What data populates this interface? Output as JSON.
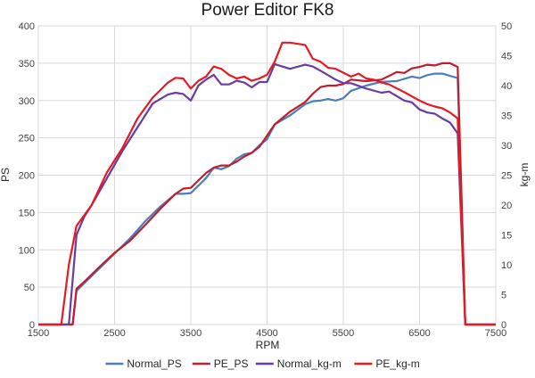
{
  "chart_data": {
    "type": "line",
    "title": "Power Editor FK8",
    "xlabel": "RPM",
    "ylabel": "PS",
    "y2label": "kg-m",
    "xlim": [
      1500,
      7500
    ],
    "ylim": [
      0,
      400
    ],
    "y2lim": [
      0,
      50
    ],
    "xticks": [
      "1500",
      "2500",
      "3500",
      "4500",
      "5500",
      "6500",
      "7500"
    ],
    "yticks": [
      "0",
      "50",
      "100",
      "150",
      "200",
      "250",
      "300",
      "350",
      "400"
    ],
    "y2ticks": [
      "0",
      "5",
      "10",
      "15",
      "20",
      "25",
      "30",
      "35",
      "40",
      "45",
      "50"
    ],
    "grid": true,
    "legend_position": "bottom",
    "series": [
      {
        "name": "Normal_PS",
        "axis": "left",
        "color": "#4a7ebb",
        "points": [
          [
            1500,
            0
          ],
          [
            1950,
            0
          ],
          [
            2000,
            45
          ],
          [
            2100,
            55
          ],
          [
            2300,
            75
          ],
          [
            2500,
            95
          ],
          [
            2700,
            115
          ],
          [
            2900,
            138
          ],
          [
            3100,
            158
          ],
          [
            3300,
            175
          ],
          [
            3400,
            175
          ],
          [
            3500,
            176
          ],
          [
            3700,
            196
          ],
          [
            3800,
            210
          ],
          [
            3900,
            208
          ],
          [
            4000,
            212
          ],
          [
            4100,
            222
          ],
          [
            4200,
            228
          ],
          [
            4300,
            230
          ],
          [
            4400,
            240
          ],
          [
            4500,
            248
          ],
          [
            4600,
            268
          ],
          [
            4800,
            280
          ],
          [
            5000,
            295
          ],
          [
            5100,
            299
          ],
          [
            5200,
            300
          ],
          [
            5300,
            302
          ],
          [
            5400,
            300
          ],
          [
            5500,
            303
          ],
          [
            5600,
            313
          ],
          [
            5800,
            320
          ],
          [
            6000,
            325
          ],
          [
            6200,
            326
          ],
          [
            6400,
            332
          ],
          [
            6500,
            330
          ],
          [
            6600,
            334
          ],
          [
            6700,
            336
          ],
          [
            6800,
            336
          ],
          [
            6900,
            333
          ],
          [
            7000,
            330
          ],
          [
            7100,
            0
          ],
          [
            7500,
            0
          ]
        ]
      },
      {
        "name": "PE_PS",
        "axis": "left",
        "color": "#be1e2d",
        "points": [
          [
            1500,
            0
          ],
          [
            1950,
            0
          ],
          [
            2000,
            48
          ],
          [
            2100,
            57
          ],
          [
            2300,
            77
          ],
          [
            2500,
            96
          ],
          [
            2700,
            112
          ],
          [
            2900,
            133
          ],
          [
            3100,
            155
          ],
          [
            3300,
            175
          ],
          [
            3400,
            182
          ],
          [
            3500,
            183
          ],
          [
            3700,
            203
          ],
          [
            3800,
            210
          ],
          [
            3900,
            213
          ],
          [
            4000,
            213
          ],
          [
            4100,
            218
          ],
          [
            4200,
            225
          ],
          [
            4300,
            230
          ],
          [
            4400,
            238
          ],
          [
            4500,
            253
          ],
          [
            4600,
            268
          ],
          [
            4800,
            285
          ],
          [
            5000,
            298
          ],
          [
            5100,
            309
          ],
          [
            5200,
            318
          ],
          [
            5300,
            320
          ],
          [
            5400,
            320
          ],
          [
            5500,
            322
          ],
          [
            5600,
            328
          ],
          [
            5800,
            326
          ],
          [
            6000,
            328
          ],
          [
            6200,
            338
          ],
          [
            6300,
            337
          ],
          [
            6400,
            343
          ],
          [
            6500,
            345
          ],
          [
            6600,
            348
          ],
          [
            6700,
            347
          ],
          [
            6800,
            350
          ],
          [
            6900,
            350
          ],
          [
            7000,
            345
          ],
          [
            7100,
            0
          ],
          [
            7500,
            0
          ]
        ]
      },
      {
        "name": "Normal_kg-m",
        "axis": "right",
        "color": "#6a3ba0",
        "points": [
          [
            1500,
            0
          ],
          [
            1900,
            0
          ],
          [
            2000,
            15
          ],
          [
            2100,
            18
          ],
          [
            2200,
            20
          ],
          [
            2400,
            24.5
          ],
          [
            2600,
            29
          ],
          [
            2800,
            33
          ],
          [
            3000,
            37
          ],
          [
            3200,
            38.5
          ],
          [
            3300,
            38.8
          ],
          [
            3400,
            38.6
          ],
          [
            3500,
            37.5
          ],
          [
            3600,
            40
          ],
          [
            3700,
            41
          ],
          [
            3800,
            41.8
          ],
          [
            3900,
            40.2
          ],
          [
            4000,
            40.2
          ],
          [
            4100,
            40.8
          ],
          [
            4200,
            40.5
          ],
          [
            4300,
            39.7
          ],
          [
            4400,
            40.6
          ],
          [
            4500,
            40.6
          ],
          [
            4600,
            43.6
          ],
          [
            4700,
            43.2
          ],
          [
            4800,
            42.8
          ],
          [
            5000,
            43.5
          ],
          [
            5100,
            43.2
          ],
          [
            5200,
            42.5
          ],
          [
            5400,
            41
          ],
          [
            5500,
            40.4
          ],
          [
            5600,
            40.4
          ],
          [
            5800,
            39.5
          ],
          [
            6000,
            38.8
          ],
          [
            6100,
            39
          ],
          [
            6300,
            37.5
          ],
          [
            6400,
            37.2
          ],
          [
            6500,
            36.0
          ],
          [
            6600,
            35.5
          ],
          [
            6700,
            35.3
          ],
          [
            6800,
            34.5
          ],
          [
            6900,
            33.8
          ],
          [
            7000,
            32.0
          ],
          [
            7100,
            0
          ],
          [
            7500,
            0
          ]
        ]
      },
      {
        "name": "PE_kg-m",
        "axis": "right",
        "color": "#e51b23",
        "points": [
          [
            1500,
            0
          ],
          [
            1800,
            0
          ],
          [
            1900,
            10
          ],
          [
            2000,
            16.5
          ],
          [
            2200,
            20
          ],
          [
            2400,
            25.5
          ],
          [
            2600,
            29.5
          ],
          [
            2800,
            34.5
          ],
          [
            3000,
            38
          ],
          [
            3200,
            40.5
          ],
          [
            3300,
            41.3
          ],
          [
            3400,
            41.2
          ],
          [
            3500,
            39.5
          ],
          [
            3600,
            40.8
          ],
          [
            3700,
            41.5
          ],
          [
            3800,
            43.2
          ],
          [
            3900,
            42.8
          ],
          [
            4000,
            41.8
          ],
          [
            4100,
            41.2
          ],
          [
            4200,
            41.5
          ],
          [
            4300,
            40.8
          ],
          [
            4400,
            41.2
          ],
          [
            4500,
            41.8
          ],
          [
            4600,
            44
          ],
          [
            4700,
            47.2
          ],
          [
            4800,
            47.2
          ],
          [
            5000,
            46.8
          ],
          [
            5100,
            44.5
          ],
          [
            5200,
            44
          ],
          [
            5300,
            43
          ],
          [
            5400,
            42.8
          ],
          [
            5600,
            41.5
          ],
          [
            5700,
            42
          ],
          [
            5800,
            41.2
          ],
          [
            5900,
            41
          ],
          [
            6000,
            40.5
          ],
          [
            6100,
            40.2
          ],
          [
            6300,
            38.9
          ],
          [
            6500,
            37.5
          ],
          [
            6600,
            36.9
          ],
          [
            6700,
            36.5
          ],
          [
            6800,
            36.2
          ],
          [
            6900,
            35.5
          ],
          [
            7000,
            34.5
          ],
          [
            7100,
            0
          ],
          [
            7500,
            0
          ]
        ]
      }
    ]
  }
}
